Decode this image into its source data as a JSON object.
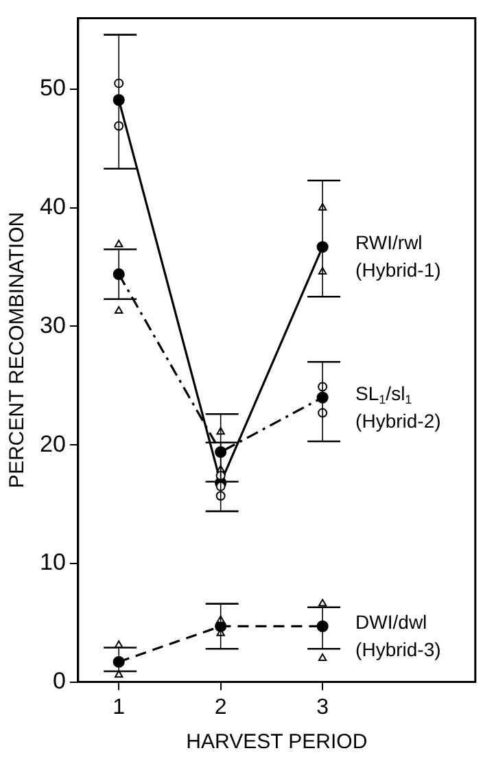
{
  "chart_data": {
    "type": "line",
    "xlabel": "HARVEST PERIOD",
    "ylabel": "PERCENT RECOMBINATION",
    "xlim": [
      0.6,
      4.5
    ],
    "xticks": [
      1,
      2,
      3
    ],
    "ylim": [
      0,
      56
    ],
    "yticks": [
      0,
      10,
      20,
      30,
      40,
      50
    ],
    "grid": false,
    "legend": "right",
    "series": [
      {
        "name": "RWI/rwl (Hybrid-1)",
        "type": "line",
        "line_style": "solid",
        "marker": "circle",
        "color": "#000000",
        "x": [
          1,
          2,
          3
        ],
        "values": [
          49.1,
          16.8,
          36.7
        ],
        "errors": [
          [
            43.3,
            54.6
          ],
          [
            14.4,
            20.2
          ],
          [
            32.5,
            42.3
          ]
        ]
      },
      {
        "name": "SL$_{1}$/sl$_{1}$ (Hybrid-2)",
        "type": "line",
        "line_style": "dashdot",
        "marker": "circle",
        "color": "#000000",
        "x": [
          1,
          2,
          3
        ],
        "values": [
          34.4,
          19.4,
          24.0
        ],
        "errors": [
          [
            32.3,
            36.5
          ],
          [
            16.9,
            22.6
          ],
          [
            20.3,
            27.0
          ]
        ]
      },
      {
        "name": "DWI/dwl (Hybrid-3)",
        "type": "line",
        "line_style": "dashed",
        "marker": "circle",
        "color": "#000000",
        "x": [
          1,
          2,
          3
        ],
        "values": [
          1.7,
          4.7,
          4.7
        ],
        "errors": [
          [
            0.9,
            2.9
          ],
          [
            2.8,
            6.6
          ],
          [
            2.8,
            6.3
          ]
        ]
      },
      {
        "type": "scatter",
        "marker": "circle",
        "color": "#000000",
        "x": [
          1,
          1,
          2,
          2,
          2,
          3,
          3
        ],
        "values": [
          50.5,
          46.9,
          17.4,
          16.5,
          15.7,
          24.9,
          22.7
        ]
      },
      {
        "type": "scatter",
        "marker": "triangle",
        "color": "#000000",
        "x": [
          1,
          1,
          2,
          2,
          3,
          3
        ],
        "values": [
          36.9,
          31.3,
          21.1,
          17.9,
          40.0,
          34.6
        ]
      },
      {
        "type": "scatter",
        "marker": "triangle",
        "color": "#000000",
        "x": [
          1,
          1,
          2,
          2,
          3,
          3
        ],
        "values": [
          3.1,
          0.6,
          5.2,
          4.1,
          6.6,
          2.0
        ]
      }
    ]
  }
}
